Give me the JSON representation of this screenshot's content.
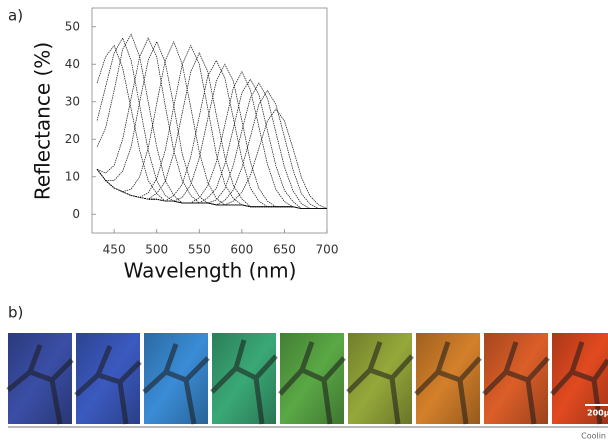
{
  "chart_data": {
    "type": "line",
    "x_label": "Wavelength (nm)",
    "y_label": "Reflectance (%)",
    "color": "#111111",
    "xlim": [
      424,
      700
    ],
    "xticks": [
      450,
      500,
      550,
      600,
      650,
      700
    ],
    "ylim": [
      -5,
      55
    ],
    "yticks": [
      0,
      10,
      20,
      30,
      40,
      50
    ],
    "x": [
      430,
      440,
      450,
      460,
      470,
      480,
      490,
      500,
      510,
      520,
      530,
      540,
      550,
      560,
      570,
      580,
      590,
      600,
      610,
      620,
      630,
      640,
      650,
      660,
      670,
      680,
      690,
      700
    ],
    "series": [
      {
        "values": [
          35,
          42,
          45,
          39,
          28,
          17,
          9,
          5.5,
          3.5,
          3.5,
          3,
          3,
          3,
          3,
          2.5,
          2.5,
          2.5,
          2.5,
          2,
          2,
          2,
          2,
          2,
          2,
          1.5,
          1.5,
          1.5,
          1.5
        ]
      },
      {
        "values": [
          25,
          34,
          43,
          47,
          41,
          29,
          17,
          9,
          5,
          3.5,
          3,
          3,
          3,
          3,
          2.5,
          2.5,
          2.5,
          2.5,
          2,
          2,
          2,
          2,
          2,
          2,
          1.5,
          1.5,
          1.5,
          1.5
        ]
      },
      {
        "values": [
          18,
          23,
          33,
          44,
          48,
          42,
          30,
          18,
          9,
          5,
          3,
          3,
          3,
          3,
          2.5,
          2.5,
          2.5,
          2.5,
          2,
          2,
          2,
          2,
          2,
          2,
          1.5,
          1.5,
          1.5,
          1.5
        ]
      },
      {
        "values": [
          12,
          11,
          13,
          20,
          31,
          42,
          47,
          42,
          29,
          17,
          9,
          5,
          3,
          3,
          2.5,
          2.5,
          2.5,
          2.5,
          2,
          2,
          2,
          2,
          2,
          2,
          1.5,
          1.5,
          1.5,
          1.5
        ]
      },
      {
        "values": [
          12,
          9,
          9,
          11.5,
          18,
          30,
          41,
          46,
          40.5,
          29,
          16,
          8.5,
          4.7,
          3,
          2.5,
          2.5,
          2.5,
          2.5,
          2,
          2,
          2,
          2,
          2,
          2,
          1.5,
          1.5,
          1.5,
          1.5
        ]
      },
      {
        "values": [
          12,
          9,
          7,
          6,
          6.7,
          10,
          17.6,
          29.5,
          41,
          46,
          40,
          28.5,
          16.6,
          8.5,
          4.2,
          2.5,
          2.5,
          2.5,
          2,
          2,
          2,
          2,
          2,
          2,
          1.5,
          1.5,
          1.5,
          1.5
        ]
      },
      {
        "values": [
          12,
          9,
          7,
          6,
          5,
          4.5,
          5.7,
          9.5,
          17,
          28.7,
          40,
          45,
          40,
          28.2,
          16,
          8,
          4.2,
          2.5,
          2,
          2,
          2,
          2,
          2,
          2,
          1.5,
          1.5,
          1.5,
          1.5
        ]
      },
      {
        "values": [
          12,
          9,
          7,
          6,
          5,
          4.5,
          4,
          5.6,
          8.7,
          16.3,
          27,
          38,
          43,
          38,
          26.5,
          15.3,
          7.7,
          4.1,
          2,
          2,
          2,
          2,
          2,
          2,
          1.5,
          1.5,
          1.5,
          1.5
        ]
      },
      {
        "values": [
          12,
          9,
          7,
          6,
          5,
          4.5,
          4,
          4,
          3.5,
          5,
          8,
          15.3,
          26.1,
          36.9,
          41,
          36.4,
          25.6,
          14.8,
          7,
          3.5,
          2,
          2,
          2,
          2,
          1.5,
          1.5,
          1.5,
          1.5
        ]
      },
      {
        "values": [
          12,
          9,
          7,
          6,
          5,
          4.5,
          4,
          4,
          3.5,
          3.5,
          4.5,
          7.9,
          15,
          25.5,
          35.5,
          40,
          35.5,
          25,
          14,
          6.9,
          3.5,
          2,
          2,
          2,
          1.5,
          1.5,
          1.5,
          1.5
        ]
      },
      {
        "values": [
          12,
          9,
          7,
          6,
          5,
          4.5,
          4,
          4,
          3.5,
          3.5,
          3,
          3,
          4.4,
          7.6,
          13.9,
          23.8,
          33.7,
          38,
          33.2,
          23.3,
          13.4,
          6.6,
          3.4,
          2,
          1.5,
          1.5,
          1.5,
          1.5
        ]
      },
      {
        "values": [
          12,
          9,
          7,
          6,
          5,
          4.5,
          4,
          4,
          3.5,
          3.5,
          3,
          3,
          3,
          4.4,
          6.9,
          13.4,
          22.9,
          32.4,
          36,
          31.9,
          22.4,
          12.9,
          6.4,
          3.4,
          1.5,
          1.5,
          1.5,
          1.5
        ]
      },
      {
        "values": [
          12,
          9,
          7,
          6,
          5,
          4.5,
          4,
          4,
          3.5,
          3.5,
          3,
          3,
          3,
          3,
          3.8,
          6.8,
          13.1,
          22.3,
          31,
          35,
          31,
          21.8,
          12.6,
          6.3,
          2.8,
          1.5,
          1.5,
          1.5
        ]
      },
      {
        "values": [
          12,
          9,
          7,
          6,
          5,
          4.5,
          4,
          4,
          3.5,
          3.5,
          3,
          3,
          3,
          3,
          2.5,
          3.7,
          6.5,
          12.4,
          20.6,
          29.3,
          33,
          29.3,
          20.6,
          11.9,
          5.5,
          2.7,
          1.5,
          1.5
        ]
      },
      {
        "values": [
          12,
          9,
          7,
          6,
          5,
          4.5,
          4,
          4,
          3.5,
          3.5,
          3,
          3,
          3,
          3,
          2.5,
          2.5,
          3.5,
          5.9,
          10.3,
          17.6,
          24.9,
          28,
          24.9,
          17.6,
          9.8,
          4.9,
          2.5,
          1.5
        ]
      }
    ]
  },
  "panel_labels": [
    "a)",
    "b)"
  ],
  "scale_bar": "200μ",
  "footer": "Coolin"
}
